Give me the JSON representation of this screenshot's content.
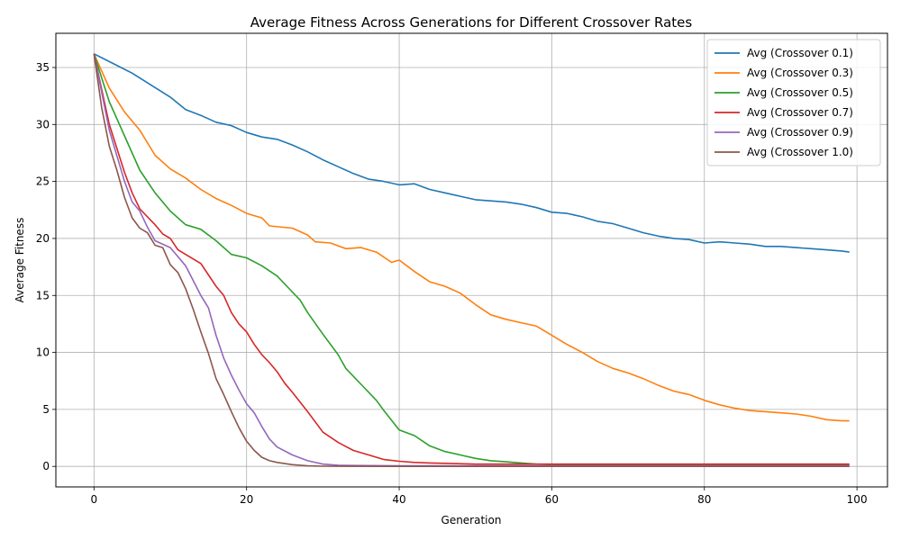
{
  "chart_data": {
    "type": "line",
    "title": "Average Fitness Across Generations for Different Crossover Rates",
    "xlabel": "Generation",
    "ylabel": "Average Fitness",
    "xlim": [
      -5,
      104
    ],
    "ylim": [
      -1.8,
      38
    ],
    "xticks": [
      0,
      20,
      40,
      60,
      80,
      100
    ],
    "yticks": [
      0,
      5,
      10,
      15,
      20,
      25,
      30,
      35
    ],
    "grid": true,
    "legend_position": "top-right",
    "series": [
      {
        "name": "Avg (Crossover 0.1)",
        "color": "#1f77b4",
        "x": [
          0,
          5,
          10,
          12,
          14,
          16,
          18,
          20,
          22,
          24,
          26,
          28,
          30,
          32,
          34,
          36,
          38,
          40,
          42,
          44,
          46,
          48,
          50,
          52,
          54,
          56,
          58,
          60,
          62,
          64,
          66,
          68,
          70,
          72,
          74,
          76,
          78,
          80,
          82,
          84,
          86,
          88,
          90,
          92,
          94,
          96,
          98,
          99
        ],
        "y": [
          36.2,
          34.5,
          32.4,
          31.3,
          30.8,
          30.2,
          29.9,
          29.3,
          28.9,
          28.7,
          28.2,
          27.6,
          26.9,
          26.3,
          25.7,
          25.2,
          25.0,
          24.7,
          24.8,
          24.3,
          24.0,
          23.7,
          23.4,
          23.3,
          23.2,
          23.0,
          22.7,
          22.3,
          22.2,
          21.9,
          21.5,
          21.3,
          20.9,
          20.5,
          20.2,
          20.0,
          19.9,
          19.6,
          19.7,
          19.6,
          19.5,
          19.3,
          19.3,
          19.2,
          19.1,
          19.0,
          18.9,
          18.8
        ]
      },
      {
        "name": "Avg (Crossover 0.3)",
        "color": "#ff7f0e",
        "x": [
          0,
          2,
          4,
          6,
          8,
          10,
          12,
          14,
          16,
          18,
          20,
          22,
          23,
          26,
          28,
          29,
          31,
          33,
          35,
          37,
          39,
          40,
          42,
          44,
          46,
          48,
          50,
          52,
          54,
          56,
          58,
          60,
          62,
          64,
          66,
          68,
          70,
          72,
          74,
          76,
          78,
          80,
          82,
          84,
          86,
          88,
          90,
          92,
          94,
          96,
          98,
          99
        ],
        "y": [
          36.2,
          33.2,
          31.1,
          29.5,
          27.3,
          26.1,
          25.3,
          24.3,
          23.5,
          22.9,
          22.2,
          21.8,
          21.1,
          20.9,
          20.3,
          19.7,
          19.6,
          19.1,
          19.2,
          18.8,
          17.9,
          18.1,
          17.1,
          16.2,
          15.8,
          15.2,
          14.2,
          13.3,
          12.9,
          12.6,
          12.3,
          11.5,
          10.7,
          10.0,
          9.2,
          8.6,
          8.2,
          7.7,
          7.1,
          6.6,
          6.3,
          5.8,
          5.4,
          5.1,
          4.9,
          4.8,
          4.7,
          4.6,
          4.4,
          4.1,
          4.0,
          4.0
        ]
      },
      {
        "name": "Avg (Crossover 0.5)",
        "color": "#2ca02c",
        "x": [
          0,
          2,
          4,
          6,
          8,
          10,
          12,
          14,
          16,
          18,
          20,
          22,
          24,
          26,
          27,
          28,
          30,
          32,
          33,
          35,
          37,
          38,
          40,
          42,
          44,
          46,
          48,
          50,
          52,
          54,
          56,
          58,
          60,
          70,
          80,
          90,
          99
        ],
        "y": [
          36.2,
          32.0,
          29.0,
          26.0,
          24.0,
          22.4,
          21.2,
          20.8,
          19.8,
          18.6,
          18.3,
          17.6,
          16.7,
          15.3,
          14.6,
          13.5,
          11.6,
          9.8,
          8.6,
          7.2,
          5.8,
          4.9,
          3.2,
          2.7,
          1.8,
          1.3,
          1.0,
          0.7,
          0.5,
          0.4,
          0.3,
          0.2,
          0.15,
          0.12,
          0.12,
          0.12,
          0.12
        ]
      },
      {
        "name": "Avg (Crossover 0.7)",
        "color": "#d62728",
        "x": [
          0,
          2,
          4,
          5,
          6,
          8,
          9,
          10,
          11,
          12,
          14,
          15,
          16,
          17,
          18,
          19,
          20,
          21,
          22,
          23,
          24,
          25,
          26,
          28,
          30,
          32,
          34,
          36,
          38,
          40,
          42,
          44,
          50,
          60,
          70,
          80,
          90,
          99
        ],
        "y": [
          36.2,
          30.0,
          25.8,
          24.0,
          22.6,
          21.2,
          20.4,
          20.0,
          19.0,
          18.6,
          17.8,
          16.8,
          15.8,
          15.0,
          13.5,
          12.5,
          11.8,
          10.7,
          9.8,
          9.1,
          8.3,
          7.3,
          6.5,
          4.8,
          3.0,
          2.1,
          1.4,
          1.0,
          0.6,
          0.45,
          0.35,
          0.3,
          0.2,
          0.2,
          0.2,
          0.2,
          0.2,
          0.2
        ]
      },
      {
        "name": "Avg (Crossover 0.9)",
        "color": "#9467bd",
        "x": [
          0,
          2,
          4,
          5,
          6,
          7,
          8,
          10,
          12,
          14,
          15,
          16,
          17,
          18,
          19,
          20,
          21,
          22,
          23,
          24,
          26,
          28,
          30,
          32,
          34,
          40,
          50,
          60,
          70,
          80,
          90,
          99
        ],
        "y": [
          36.2,
          29.5,
          25.0,
          23.2,
          22.4,
          21.0,
          19.8,
          19.2,
          17.6,
          15.0,
          13.9,
          11.5,
          9.5,
          8.0,
          6.7,
          5.5,
          4.7,
          3.5,
          2.4,
          1.7,
          1.0,
          0.5,
          0.2,
          0.1,
          0.08,
          0.05,
          0.05,
          0.05,
          0.05,
          0.05,
          0.05,
          0.05
        ]
      },
      {
        "name": "Avg (Crossover 1.0)",
        "color": "#8c564b",
        "x": [
          0,
          1,
          2,
          3,
          4,
          5,
          6,
          7,
          8,
          9,
          10,
          11,
          12,
          13,
          14,
          15,
          16,
          17,
          18,
          19,
          20,
          21,
          22,
          23,
          24,
          26,
          28,
          30,
          40,
          50,
          60,
          70,
          80,
          90,
          99
        ],
        "y": [
          36.2,
          31.5,
          28.1,
          26.0,
          23.6,
          21.8,
          20.9,
          20.5,
          19.4,
          19.2,
          17.7,
          17.0,
          15.6,
          13.8,
          11.8,
          9.9,
          7.7,
          6.3,
          4.8,
          3.4,
          2.2,
          1.4,
          0.8,
          0.5,
          0.35,
          0.15,
          0.05,
          0.02,
          0.0,
          0.0,
          0.0,
          0.0,
          0.0,
          0.0,
          0.0
        ]
      }
    ]
  }
}
